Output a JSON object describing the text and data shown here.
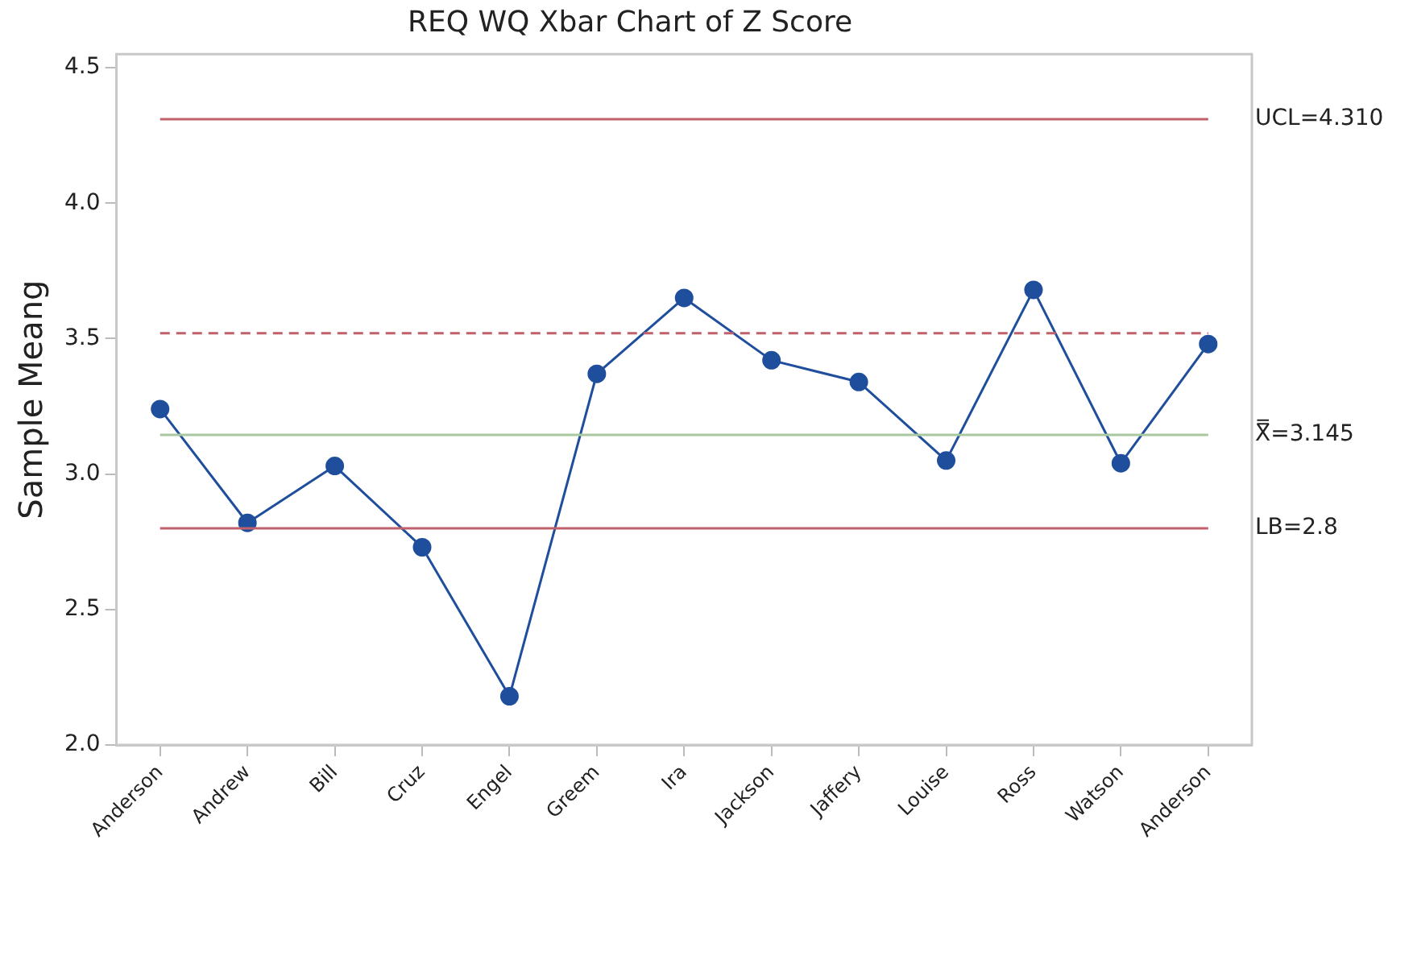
{
  "chart_data": {
    "type": "line",
    "title": "REQ WQ Xbar Chart of Z Score",
    "ylabel": "Sample Meang",
    "categories": [
      "Anderson",
      "Andrew",
      "Bill",
      "Cruz",
      "Engel",
      "Greem",
      "Ira",
      "Jackson",
      "Jaffery",
      "Louise",
      "Ross",
      "Watson",
      "Anderson"
    ],
    "series": [
      {
        "color": "#1f4e9c",
        "values": [
          3.24,
          2.82,
          3.03,
          2.73,
          2.18,
          3.37,
          3.65,
          3.42,
          3.34,
          3.05,
          3.68,
          3.04,
          3.48
        ]
      }
    ],
    "ylim": [
      2.0,
      4.55
    ],
    "yticks": [
      {
        "value": 2.0,
        "label": "2.0"
      },
      {
        "value": 2.5,
        "label": "2.5"
      },
      {
        "value": 3.0,
        "label": "3.0"
      },
      {
        "value": 3.5,
        "label": "3.5"
      },
      {
        "value": 4.0,
        "label": "4.0"
      },
      {
        "value": 4.5,
        "label": "4.5"
      }
    ],
    "ref_lines": [
      {
        "axis": "y",
        "value": 4.31,
        "label": "UCL=4.310",
        "color": "#c0606a",
        "line_style": "solid"
      },
      {
        "axis": "y",
        "value": 3.52,
        "label": null,
        "color": "#c0606a",
        "line_style": "dashed"
      },
      {
        "axis": "y",
        "value": 3.145,
        "label": "X̿=3.145",
        "color": "#a8c8a0",
        "line_style": "solid"
      },
      {
        "axis": "y",
        "value": 2.8,
        "label": "LB=2.8",
        "color": "#c0606a",
        "line_style": "solid"
      }
    ],
    "grid": false,
    "legend": false,
    "marker": "circle",
    "line_style": "solid"
  }
}
